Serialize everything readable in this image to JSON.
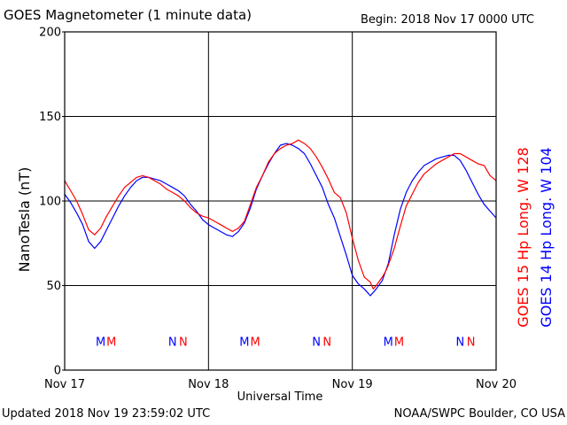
{
  "chart_data": {
    "type": "line",
    "title": "GOES Magnetometer (1 minute data)",
    "begin_text": "Begin:  2018 Nov 17 0000 UTC",
    "ylabel": "NanoTesla (nT)",
    "xlabel": "Universal Time",
    "ylim": [
      0,
      200
    ],
    "xlim": [
      0,
      72
    ],
    "x_units": "hours since 2018 Nov 17 0000 UTC",
    "yticks": [
      0,
      50,
      100,
      150,
      200
    ],
    "xtick_labels": [
      {
        "x": 0,
        "label": "Nov 17"
      },
      {
        "x": 24,
        "label": "Nov 18"
      },
      {
        "x": 48,
        "label": "Nov 19"
      },
      {
        "x": 72,
        "label": "Nov 20"
      }
    ],
    "grid": true,
    "legend_placement": "right (vertical)",
    "series": [
      {
        "name": "GOES 15 Hp  Long. W 128",
        "color": "#ff0000",
        "x": [
          0,
          1,
          2,
          3,
          4,
          5,
          6,
          7,
          8,
          9,
          10,
          11,
          12,
          13,
          14,
          15,
          16,
          17,
          18,
          19,
          20,
          21,
          22,
          23,
          24,
          25,
          26,
          27,
          28,
          29,
          30,
          31,
          32,
          33,
          34,
          35,
          36,
          37,
          38,
          39,
          40,
          41,
          42,
          43,
          44,
          45,
          46,
          47,
          48,
          49,
          50,
          51,
          51.5,
          52,
          53,
          53.5,
          54,
          55,
          56,
          57,
          58,
          59,
          60,
          61,
          62,
          63,
          64,
          65,
          66,
          67,
          68,
          69,
          70,
          71,
          72
        ],
        "values": [
          112,
          106,
          100,
          92,
          83,
          80,
          84,
          91,
          97,
          103,
          108,
          111,
          114,
          115,
          114,
          112,
          110,
          107,
          105,
          103,
          100,
          96,
          93,
          91,
          90,
          88,
          86,
          84,
          82,
          84,
          88,
          98,
          108,
          115,
          123,
          128,
          131,
          133,
          134,
          136,
          134,
          131,
          126,
          120,
          113,
          105,
          102,
          93,
          78,
          65,
          55,
          52,
          48,
          50,
          55,
          58,
          62,
          72,
          85,
          97,
          104,
          111,
          116,
          119,
          122,
          124,
          126,
          128,
          128,
          126,
          124,
          122,
          121,
          115,
          112
        ]
      },
      {
        "name": "GOES 14 Hp  Long. W 104",
        "color": "#0000ff",
        "x": [
          0,
          1,
          2,
          3,
          4,
          5,
          6,
          7,
          8,
          9,
          10,
          11,
          12,
          13,
          14,
          15,
          16,
          17,
          18,
          19,
          20,
          21,
          22,
          23,
          24,
          25,
          26,
          27,
          28,
          29,
          30,
          31,
          32,
          33,
          34,
          35,
          36,
          37,
          38,
          39,
          40,
          41,
          42,
          43,
          44,
          45,
          46,
          47,
          48,
          49,
          50,
          51,
          52,
          53,
          54,
          55,
          56,
          57,
          58,
          59,
          60,
          61,
          62,
          63,
          64,
          65,
          66,
          67,
          68,
          69,
          70,
          71,
          72
        ],
        "values": [
          104,
          99,
          93,
          86,
          76,
          72,
          76,
          83,
          90,
          97,
          103,
          108,
          112,
          114,
          114,
          113,
          112,
          110,
          108,
          106,
          103,
          98,
          94,
          89,
          86,
          84,
          82,
          80,
          79,
          82,
          87,
          96,
          107,
          115,
          122,
          128,
          133,
          134,
          133,
          131,
          128,
          122,
          115,
          108,
          98,
          90,
          79,
          68,
          56,
          51,
          48,
          44,
          48,
          53,
          63,
          80,
          95,
          105,
          112,
          117,
          121,
          123,
          125,
          126,
          127,
          127,
          124,
          118,
          111,
          104,
          98,
          94,
          90
        ]
      }
    ],
    "annotations": {
      "mn_row_value": 17,
      "blue_markers": [
        {
          "x": 6,
          "label": "M"
        },
        {
          "x": 18,
          "label": "N"
        },
        {
          "x": 30,
          "label": "M"
        },
        {
          "x": 42,
          "label": "N"
        },
        {
          "x": 54,
          "label": "M"
        },
        {
          "x": 66,
          "label": "N"
        }
      ],
      "red_markers": [
        {
          "x": 7.8,
          "label": "M"
        },
        {
          "x": 19.8,
          "label": "N"
        },
        {
          "x": 31.8,
          "label": "M"
        },
        {
          "x": 43.8,
          "label": "N"
        },
        {
          "x": 55.8,
          "label": "M"
        },
        {
          "x": 67.8,
          "label": "N"
        }
      ]
    }
  },
  "footer": {
    "updated": "Updated 2018 Nov 19 23:59:02 UTC",
    "source": "NOAA/SWPC Boulder, CO USA"
  }
}
